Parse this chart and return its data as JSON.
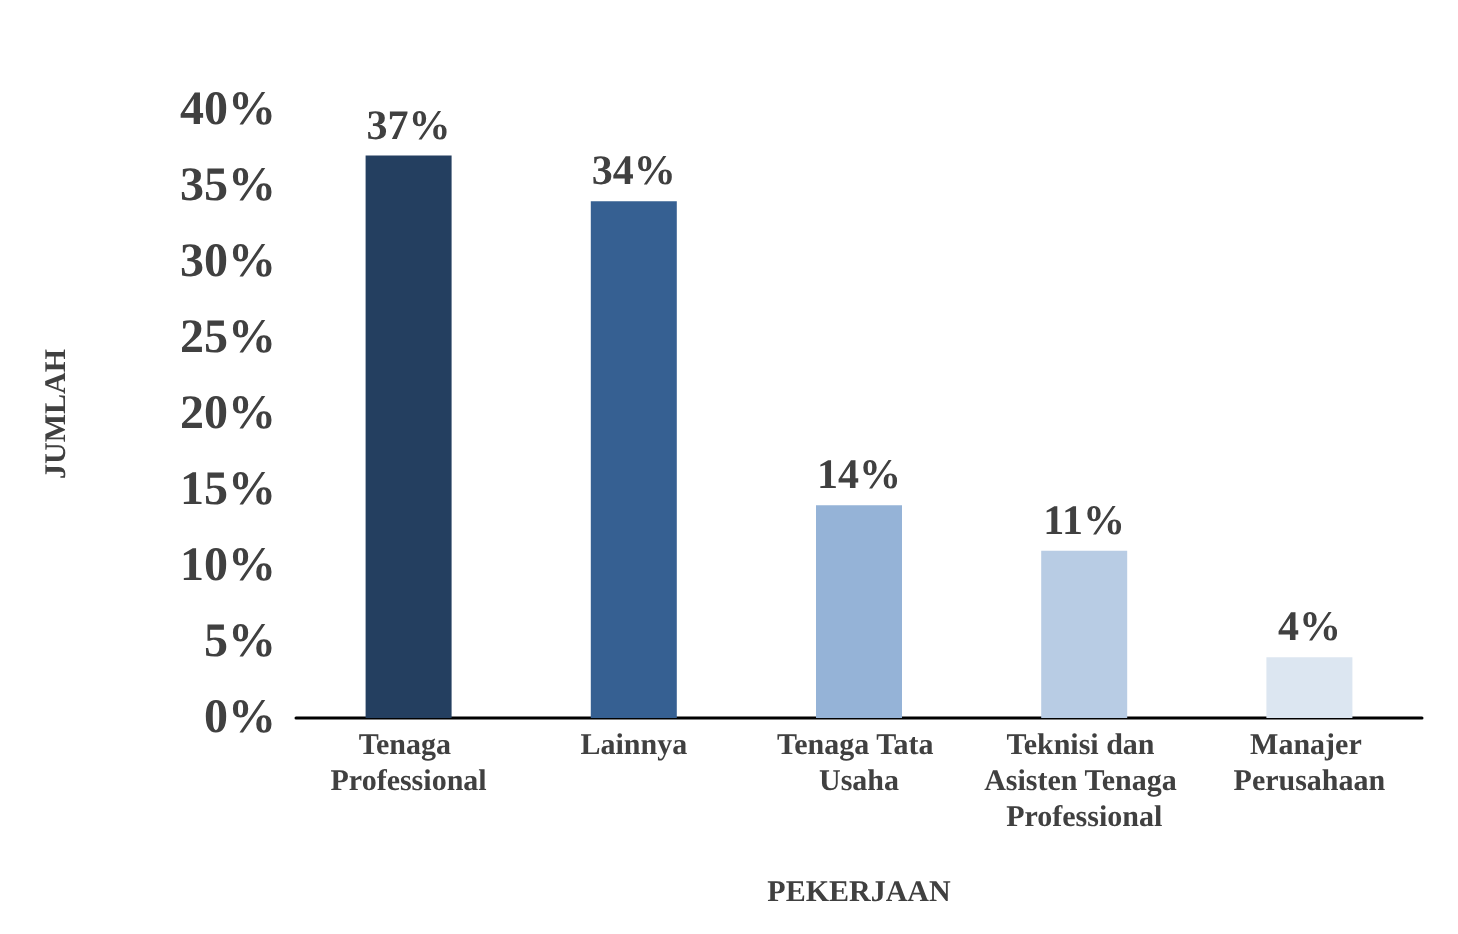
{
  "chart_data": {
    "type": "bar",
    "xlabel": "PEKERJAAN",
    "ylabel": "JUMLAH",
    "categories": [
      "Tenaga Professional",
      "Lainnya",
      "Tenaga Tata Usaha",
      "Teknisi dan Asisten Tenaga Professional",
      "Manajer Perusahaan"
    ],
    "values": [
      37,
      34,
      14,
      11,
      4
    ],
    "colors": [
      "#243f60",
      "#366092",
      "#95b3d7",
      "#b8cce4",
      "#dce6f1"
    ],
    "value_labels": [
      "37%",
      "34%",
      "14%",
      "11%",
      "4%"
    ],
    "ylim": [
      0,
      40
    ],
    "yticks": [
      {
        "value": 0,
        "label": "0%"
      },
      {
        "value": 5,
        "label": "5%"
      },
      {
        "value": 10,
        "label": "10%"
      },
      {
        "value": 15,
        "label": "15%"
      },
      {
        "value": 20,
        "label": "20%"
      },
      {
        "value": 25,
        "label": "25%"
      },
      {
        "value": 30,
        "label": "30%"
      },
      {
        "value": 35,
        "label": "35%"
      },
      {
        "value": 40,
        "label": "40%"
      }
    ],
    "grid": false
  }
}
